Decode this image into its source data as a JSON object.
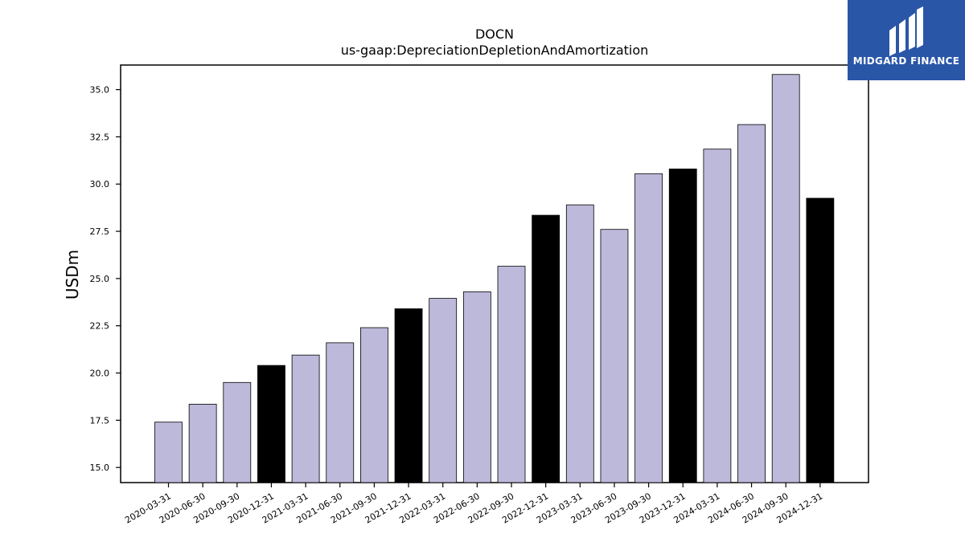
{
  "title": "DOCN",
  "subtitle": "us-gaap:DepreciationDepletionAndAmortization",
  "logo": {
    "text": "MIDGARD FINANCE",
    "bg": "#2a56a8"
  },
  "colors": {
    "quarter": "#bcb9da",
    "annual": "#000000",
    "edge": "#000000"
  },
  "chart_data": {
    "type": "bar",
    "ylabel": "USDm",
    "ylim": [
      14.2,
      36.3
    ],
    "yticks": [
      15.0,
      17.5,
      20.0,
      22.5,
      25.0,
      27.5,
      30.0,
      32.5,
      35.0
    ],
    "categories": [
      "2020-03-31",
      "2020-06-30",
      "2020-09-30",
      "2020-12-31",
      "2021-03-31",
      "2021-06-30",
      "2021-09-30",
      "2021-12-31",
      "2022-03-31",
      "2022-06-30",
      "2022-09-30",
      "2022-12-31",
      "2023-03-31",
      "2023-06-30",
      "2023-09-30",
      "2023-12-31",
      "2024-03-31",
      "2024-06-30",
      "2024-09-30",
      "2024-12-31"
    ],
    "values": [
      17.4,
      18.35,
      19.5,
      20.4,
      20.95,
      21.6,
      22.4,
      23.4,
      23.95,
      24.3,
      25.65,
      28.35,
      28.9,
      27.6,
      30.55,
      30.8,
      31.85,
      33.15,
      35.8,
      29.25
    ],
    "highlight": [
      false,
      false,
      false,
      true,
      false,
      false,
      false,
      true,
      false,
      false,
      false,
      true,
      false,
      false,
      false,
      true,
      false,
      false,
      false,
      true
    ],
    "grid": false,
    "legend": "none"
  }
}
